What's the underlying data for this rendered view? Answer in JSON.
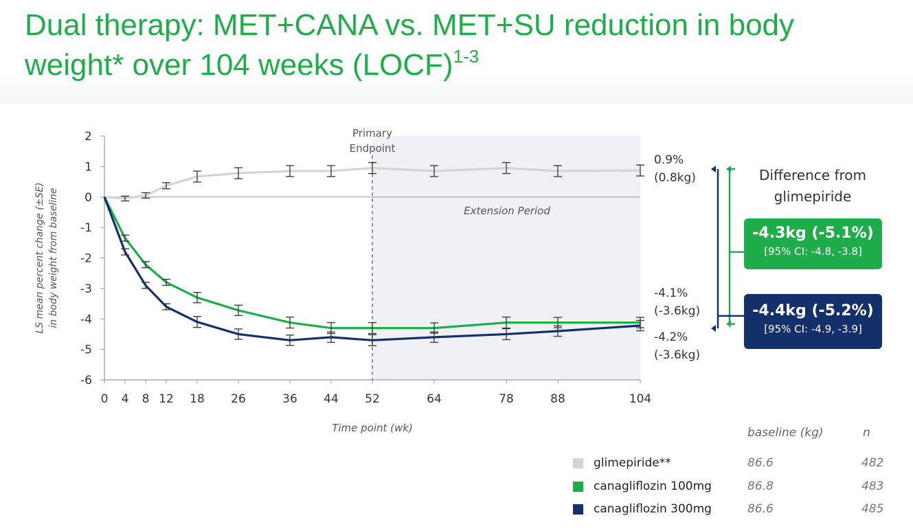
{
  "slide": {
    "title_line1": "Dual therapy: MET+CANA vs. MET+SU reduction in body",
    "title_line2": "weight* over 104 weeks (LOCF)",
    "title_superscript": "1-3"
  },
  "chart_data": {
    "type": "line",
    "xlabel": "Time point (wk)",
    "ylabel_line1": "LS mean percent change (±SE)",
    "ylabel_line2": "in body weight from baseline",
    "ylim": [
      -6,
      2
    ],
    "y_ticks": [
      2,
      1,
      0,
      -1,
      -2,
      -3,
      -4,
      -5,
      -6
    ],
    "x_ticks": [
      0,
      4,
      8,
      12,
      18,
      26,
      36,
      44,
      52,
      64,
      78,
      88,
      104
    ],
    "x_axis_scale": "categorical (uneven spacing)",
    "grid": false,
    "zero_line": true,
    "primary_endpoint_label_line1": "Primary",
    "primary_endpoint_label_line2": "Endpoint",
    "primary_endpoint_week": 52,
    "extension_period_label": "Extension Period",
    "extension_period_weeks": [
      52,
      104
    ],
    "series": [
      {
        "name": "glimepiride**",
        "color": "#d4d4d4",
        "x": [
          0,
          4,
          8,
          12,
          18,
          26,
          36,
          44,
          52,
          64,
          78,
          88,
          104
        ],
        "y": [
          0,
          -0.05,
          0.05,
          0.37,
          0.67,
          0.78,
          0.85,
          0.85,
          0.95,
          0.85,
          0.95,
          0.85,
          0.87
        ],
        "se": [
          0,
          0.08,
          0.09,
          0.1,
          0.18,
          0.18,
          0.18,
          0.18,
          0.18,
          0.18,
          0.18,
          0.18,
          0.18
        ]
      },
      {
        "name": "canagliflozin 100mg",
        "color": "#1fac4a",
        "x": [
          0,
          4,
          8,
          12,
          18,
          26,
          36,
          44,
          52,
          64,
          78,
          88,
          104
        ],
        "y": [
          0,
          -1.35,
          -2.22,
          -2.8,
          -3.3,
          -3.72,
          -4.12,
          -4.3,
          -4.3,
          -4.3,
          -4.12,
          -4.12,
          -4.12
        ],
        "se": [
          0,
          0.1,
          0.1,
          0.1,
          0.17,
          0.17,
          0.18,
          0.18,
          0.18,
          0.17,
          0.18,
          0.17,
          0.17
        ]
      },
      {
        "name": "canagliflozin 300mg",
        "color": "#13306a",
        "x": [
          0,
          4,
          8,
          12,
          18,
          26,
          36,
          44,
          52,
          64,
          78,
          88,
          104
        ],
        "y": [
          0,
          -1.8,
          -2.9,
          -3.6,
          -4.1,
          -4.5,
          -4.7,
          -4.6,
          -4.7,
          -4.6,
          -4.5,
          -4.4,
          -4.22
        ],
        "se": [
          0,
          0.1,
          0.1,
          0.1,
          0.18,
          0.17,
          0.17,
          0.17,
          0.18,
          0.17,
          0.18,
          0.17,
          0.17
        ]
      }
    ],
    "end_labels": {
      "glimepiride": [
        "0.9%",
        "(0.8kg)"
      ],
      "cana100": [
        "-4.1%",
        "(-3.6kg)"
      ],
      "cana300": [
        "-4.2%",
        "(-3.6kg)"
      ]
    }
  },
  "difference": {
    "title_line1": "Difference from",
    "title_line2": "glimepiride",
    "cana100": {
      "value": "-4.3kg (-5.1%)",
      "ci": "[95% CI: -4.8, -3.8]",
      "color": "#1fac4a"
    },
    "cana300": {
      "value": "-4.4kg (-5.2%)",
      "ci": "[95% CI: -4.9, -3.9]",
      "color": "#13306a"
    }
  },
  "legend": {
    "header_baseline": "baseline (kg)",
    "header_n": "n",
    "rows": [
      {
        "name": "glimepiride**",
        "baseline": "86.6",
        "n": "482",
        "color": "#d4d4d4"
      },
      {
        "name": "canagliflozin 100mg",
        "baseline": "86.8",
        "n": "483",
        "color": "#1fac4a"
      },
      {
        "name": "canagliflozin 300mg",
        "baseline": "86.6",
        "n": "485",
        "color": "#13306a"
      }
    ]
  }
}
